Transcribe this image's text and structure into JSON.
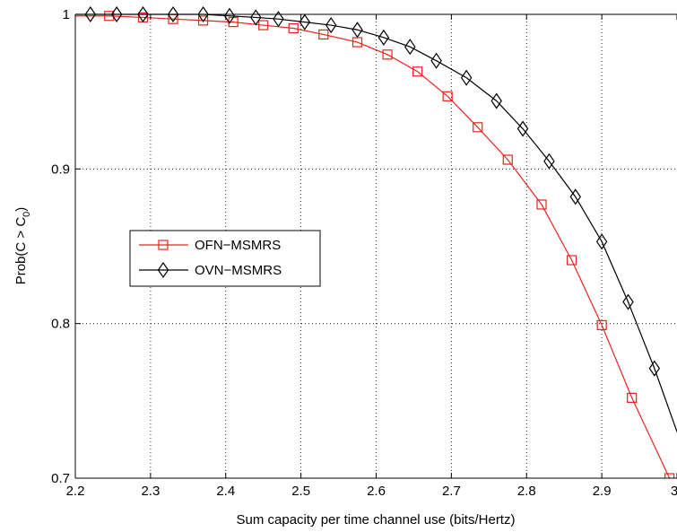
{
  "chart_data": {
    "type": "line",
    "xlabel": "Sum capacity per time channel use (bits/Hertz)",
    "ylabel": "Prob(C > C",
    "ylabel_subscript": "0",
    "ylabel_close": ")",
    "xlim": [
      2.2,
      3.0
    ],
    "ylim": [
      0.7,
      1.0
    ],
    "x_ticks": [
      2.2,
      2.3,
      2.4,
      2.5,
      2.6,
      2.7,
      2.8,
      2.9,
      3.0
    ],
    "x_tick_labels": [
      "2.2",
      "2.3",
      "2.4",
      "2.5",
      "2.6",
      "2.7",
      "2.8",
      "2.9",
      "3"
    ],
    "y_ticks": [
      0.7,
      0.8,
      0.9,
      1.0
    ],
    "y_tick_labels": [
      "0.7",
      "0.8",
      "0.9",
      "1"
    ],
    "grid": true,
    "legend_position": "center-left",
    "series": [
      {
        "name": "OFN−MSMRS",
        "color": "#e8241d",
        "marker": "square",
        "x": [
          2.2,
          2.245,
          2.29,
          2.33,
          2.37,
          2.41,
          2.45,
          2.49,
          2.53,
          2.575,
          2.615,
          2.655,
          2.695,
          2.735,
          2.775,
          2.82,
          2.86,
          2.9,
          2.94,
          2.99,
          3.0
        ],
        "y": [
          0.999,
          0.999,
          0.998,
          0.997,
          0.996,
          0.995,
          0.993,
          0.991,
          0.987,
          0.982,
          0.974,
          0.963,
          0.947,
          0.927,
          0.906,
          0.877,
          0.841,
          0.799,
          0.752,
          0.7,
          0.683
        ]
      },
      {
        "name": "OVN−MSMRS",
        "color": "#000000",
        "marker": "diamond",
        "x": [
          2.2,
          2.22,
          2.255,
          2.29,
          2.33,
          2.37,
          2.405,
          2.44,
          2.47,
          2.505,
          2.54,
          2.575,
          2.61,
          2.645,
          2.68,
          2.72,
          2.76,
          2.795,
          2.83,
          2.865,
          2.9,
          2.935,
          2.97,
          3.0
        ],
        "y": [
          1.0,
          1.0,
          1.0,
          1.0,
          1.0,
          1.0,
          0.999,
          0.998,
          0.997,
          0.995,
          0.993,
          0.99,
          0.985,
          0.979,
          0.97,
          0.959,
          0.944,
          0.926,
          0.905,
          0.882,
          0.853,
          0.814,
          0.771,
          0.73
        ]
      }
    ]
  }
}
